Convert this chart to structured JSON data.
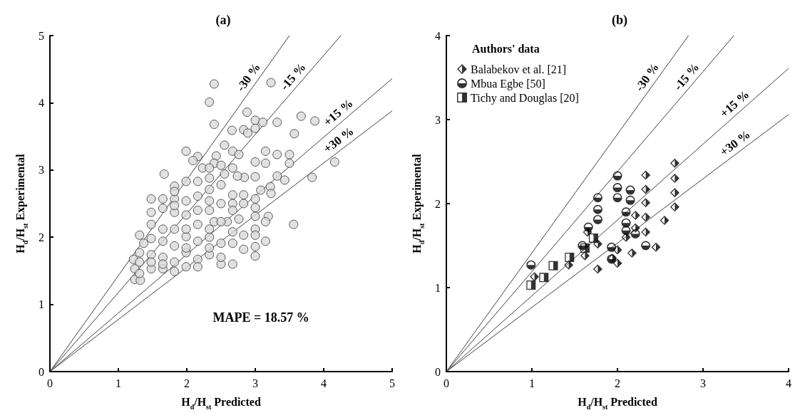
{
  "chart_data": [
    {
      "type": "scatter",
      "title": "(a)",
      "xlabel": "H$_{d}$/H$_{st}$ Predicted",
      "ylabel": "H$_{d}$/H$_{st}$ Experimental",
      "xlim": [
        0,
        5
      ],
      "ylim": [
        0,
        5
      ],
      "xticks": [
        0,
        1,
        2,
        3,
        4,
        5
      ],
      "yticks": [
        0,
        1,
        2,
        3,
        4,
        5
      ],
      "grid": false,
      "legend": false,
      "marker": "circle",
      "annotations": [
        "MAPE = 18.57 %"
      ],
      "series": [
        {
          "color": "#d9d9d9",
          "x": [
            2.4,
            2.33,
            2.4,
            3.23,
            2.88,
            3.0,
            3.11,
            3.32,
            3.67,
            3.87,
            3.57,
            2.66,
            2.83,
            2.89,
            3.0,
            2.55,
            1.99,
            1.67,
            2.16,
            2.09,
            2.43,
            2.67,
            2.76,
            3.15,
            3.32,
            3.5,
            3.5,
            3.15,
            3.0,
            4.16,
            3.83,
            3.32,
            3.43,
            3.22,
            3.23,
            3.08,
            3.0,
            2.84,
            2.74,
            2.67,
            2.55,
            2.4,
            2.23,
            1.99,
            2.16,
            1.82,
            1.48,
            1.65,
            1.99,
            2.33,
            2.5,
            2.67,
            2.83,
            3.0,
            3.0,
            2.67,
            2.83,
            3.0,
            3.19,
            3.15,
            3.56,
            3.0,
            3.0,
            3.15,
            3.0,
            3.0,
            2.83,
            2.83,
            2.67,
            2.67,
            2.59,
            2.76,
            2.67,
            2.5,
            2.5,
            2.33,
            2.33,
            2.4,
            2.33,
            2.16,
            2.16,
            2.16,
            1.99,
            1.99,
            1.99,
            1.99,
            2.16,
            1.82,
            1.65,
            1.48,
            1.48,
            1.31,
            1.37,
            1.31,
            1.22,
            1.24,
            1.24,
            1.32,
            1.31,
            1.48,
            1.65,
            1.82,
            1.82,
            1.65,
            1.48,
            1.65,
            1.82,
            1.65,
            1.82,
            1.48,
            1.82,
            2.33,
            2.5,
            2.33,
            1.99,
            2.16,
            2.5,
            2.33,
            1.48,
            1.65,
            1.31,
            1.99,
            2.5,
            2.33,
            2.67,
            1.82,
            2.16,
            2.33,
            2.5,
            1.82
          ],
          "values": [
            4.28,
            4.01,
            3.68,
            4.3,
            3.86,
            3.74,
            3.71,
            3.71,
            3.8,
            3.73,
            3.54,
            3.59,
            3.6,
            3.55,
            3.62,
            3.37,
            3.28,
            2.94,
            3.2,
            3.14,
            3.21,
            3.28,
            3.23,
            3.28,
            3.23,
            3.23,
            3.1,
            3.1,
            3.12,
            3.12,
            2.89,
            2.91,
            2.85,
            2.75,
            2.65,
            2.7,
            2.9,
            2.89,
            2.91,
            3.03,
            2.94,
            3.1,
            3.03,
            2.83,
            2.83,
            2.76,
            2.57,
            2.57,
            2.54,
            2.71,
            2.78,
            2.63,
            2.63,
            2.57,
            2.44,
            2.5,
            2.5,
            2.31,
            2.31,
            2.23,
            2.19,
            2.12,
            2.03,
            1.94,
            1.86,
            1.72,
            2.03,
            1.82,
            1.91,
            2.08,
            2.23,
            2.27,
            1.6,
            1.6,
            1.7,
            1.74,
            2.0,
            2.23,
            2.12,
            1.94,
            1.67,
            1.56,
            1.56,
            1.77,
            2.01,
            2.33,
            2.4,
            2.37,
            2.43,
            2.37,
            2.19,
            2.03,
            1.91,
            1.77,
            1.67,
            1.53,
            1.37,
            1.36,
            1.46,
            1.53,
            1.53,
            1.49,
            1.63,
            1.7,
            1.74,
            1.94,
            2.12,
            2.12,
            1.87,
            1.98,
            2.57,
            2.54,
            2.5,
            2.88,
            1.84,
            2.19,
            1.91,
            1.84,
            1.63,
            1.6,
            1.63,
            2.12,
            2.23,
            2.4,
            2.4,
            2.47,
            2.61,
            3.03,
            3.07,
            2.68
          ]
        },
        {
          "type": "line",
          "name": "-30 %",
          "marker": "none",
          "color": "#404040",
          "x": [
            0,
            3.5
          ],
          "values": [
            0,
            5
          ]
        },
        {
          "type": "line",
          "name": "-15 %",
          "marker": "none",
          "color": "#404040",
          "x": [
            0,
            4.25
          ],
          "values": [
            0,
            5
          ]
        },
        {
          "type": "line",
          "name": "+15 %",
          "marker": "none",
          "color": "#404040",
          "x": [
            0,
            5
          ],
          "values": [
            0,
            4.36
          ]
        },
        {
          "type": "line",
          "name": "+30 %",
          "marker": "none",
          "color": "#404040",
          "x": [
            0,
            5
          ],
          "values": [
            0,
            3.88
          ]
        }
      ]
    },
    {
      "type": "scatter",
      "title": "(b)",
      "xlabel": "H$_{d}$/H$_{st}$ Predicted",
      "ylabel": "H$_{d}$/H$_{st}$ Experimental",
      "xlim": [
        0,
        4
      ],
      "ylim": [
        0,
        4
      ],
      "xticks": [
        0,
        1,
        2,
        3,
        4
      ],
      "yticks": [
        0,
        1,
        2,
        3,
        4
      ],
      "grid": false,
      "legend": "top left",
      "legend_title": "Authors' data",
      "series": [
        {
          "type": "line",
          "name": "-30 %",
          "marker": "none",
          "color": "#404040",
          "x": [
            0,
            2.83
          ],
          "values": [
            0,
            4
          ]
        },
        {
          "type": "line",
          "name": "-15 %",
          "marker": "none",
          "color": "#404040",
          "x": [
            0,
            3.36
          ],
          "values": [
            0,
            4
          ]
        },
        {
          "type": "line",
          "name": "+15 %",
          "marker": "none",
          "color": "#404040",
          "x": [
            0,
            4
          ],
          "values": [
            0,
            3.61
          ]
        },
        {
          "type": "line",
          "name": "+30 %",
          "marker": "none",
          "color": "#404040",
          "x": [
            0,
            4
          ],
          "values": [
            0,
            3.06
          ]
        },
        {
          "name": "Balabekov et al. [21]",
          "marker": "diamond",
          "color": "#000000",
          "x": [
            2.67,
            2.67,
            2.67,
            2.67,
            2.55,
            2.33,
            2.33,
            2.33,
            2.33,
            2.33,
            2.45,
            2.21,
            2.21,
            2.17,
            2.1,
            2.0,
            2.0,
            1.94,
            1.77,
            1.77,
            1.65,
            1.62,
            1.43,
            1.03
          ],
          "values": [
            2.48,
            2.3,
            2.13,
            1.96,
            1.8,
            2.34,
            2.17,
            2.01,
            1.84,
            1.66,
            1.48,
            1.86,
            1.71,
            1.41,
            1.6,
            1.45,
            1.29,
            1.35,
            1.22,
            1.52,
            1.66,
            1.38,
            1.27,
            1.13
          ]
        },
        {
          "name": "Mbua Egbe [50]",
          "marker": "circle",
          "color": "#000000",
          "x": [
            0.99,
            1.59,
            1.66,
            1.77,
            1.77,
            1.77,
            2.0,
            2.0,
            2.0,
            2.15,
            2.15,
            2.1,
            2.1,
            2.1,
            2.21,
            1.93,
            1.93,
            2.33
          ],
          "values": [
            1.27,
            1.5,
            1.72,
            2.07,
            1.93,
            1.81,
            2.33,
            2.19,
            2.07,
            2.16,
            2.04,
            1.9,
            1.77,
            1.68,
            1.64,
            1.48,
            1.34,
            1.5
          ]
        },
        {
          "name": "Tichy and Douglas [20]",
          "marker": "square",
          "color": "#000000",
          "x": [
            0.99,
            1.14,
            1.25,
            1.44,
            1.62,
            1.72
          ],
          "values": [
            1.03,
            1.12,
            1.26,
            1.36,
            1.47,
            1.59
          ]
        }
      ]
    }
  ]
}
